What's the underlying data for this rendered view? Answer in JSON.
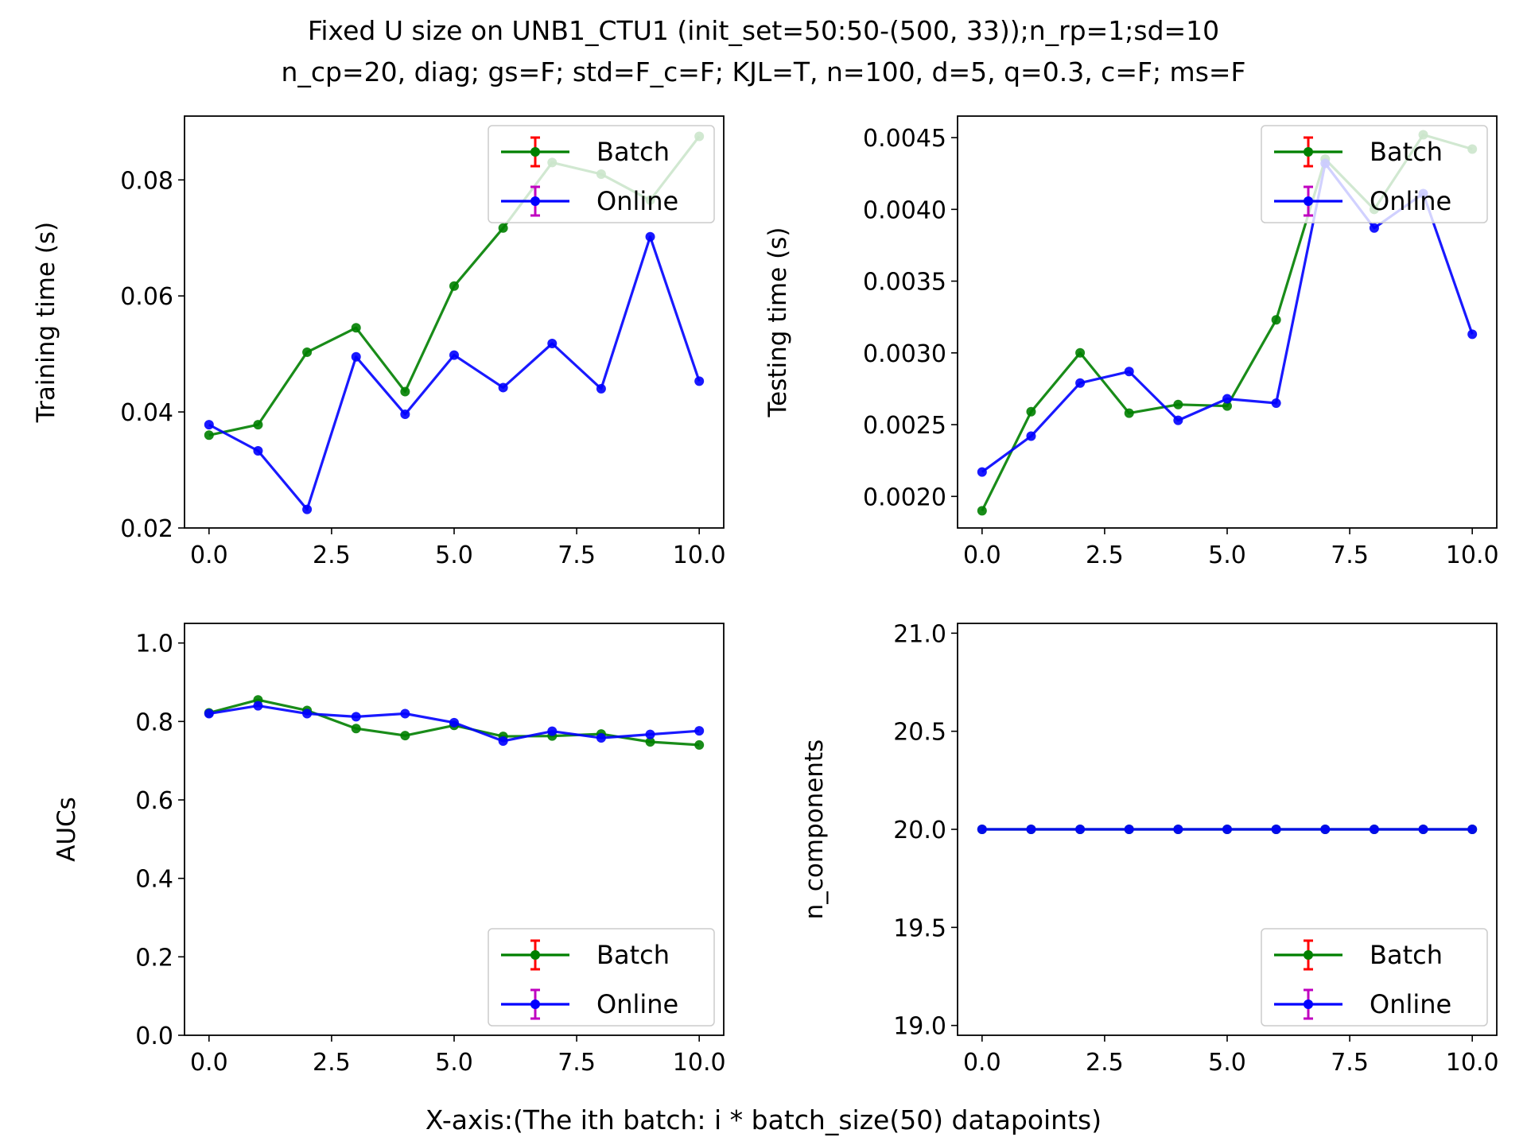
{
  "figure": {
    "title_line1": "Fixed U size on UNB1_CTU1 (init_set=50:50-(500, 33));n_rp=1;sd=10",
    "title_line2": "n_cp=20, diag; gs=F; std=F_c=F; KJL=T, n=100, d=5, q=0.3, c=F; ms=F",
    "xlabel": "X-axis:(The ith batch: i * batch_size(50) datapoints)"
  },
  "colors": {
    "batch": "#008000",
    "online": "#0000ff",
    "batch_err": "#ff0000",
    "online_err": "#c000c0"
  },
  "chart_data": [
    {
      "type": "line",
      "ylabel": "Training time (s)",
      "xlim": [
        -0.5,
        10.5
      ],
      "ylim": [
        0.02,
        0.091
      ],
      "xticks": [
        0,
        2.5,
        5,
        7.5,
        10
      ],
      "xtick_labels": [
        "0.0",
        "2.5",
        "5.0",
        "7.5",
        "10.0"
      ],
      "yticks": [
        0.02,
        0.04,
        0.06,
        0.08
      ],
      "ytick_labels": [
        "0.02",
        "0.04",
        "0.06",
        "0.08"
      ],
      "legend": "top-right",
      "x": [
        0,
        1,
        2,
        3,
        4,
        5,
        6,
        7,
        8,
        9,
        10
      ],
      "series": [
        {
          "name": "Batch",
          "values": [
            0.036,
            0.0378,
            0.0503,
            0.0545,
            0.0435,
            0.0617,
            0.0717,
            0.083,
            0.081,
            0.0765,
            0.0875
          ]
        },
        {
          "name": "Online",
          "values": [
            0.0378,
            0.0333,
            0.0232,
            0.0495,
            0.0396,
            0.0498,
            0.0442,
            0.0518,
            0.044,
            0.0702,
            0.0453
          ]
        }
      ]
    },
    {
      "type": "line",
      "ylabel": "Testing time (s)",
      "xlim": [
        -0.5,
        10.5
      ],
      "ylim": [
        0.00178,
        0.00465
      ],
      "xticks": [
        0,
        2.5,
        5,
        7.5,
        10
      ],
      "xtick_labels": [
        "0.0",
        "2.5",
        "5.0",
        "7.5",
        "10.0"
      ],
      "yticks": [
        0.002,
        0.0025,
        0.003,
        0.0035,
        0.004,
        0.0045
      ],
      "ytick_labels": [
        "0.0020",
        "0.0025",
        "0.0030",
        "0.0035",
        "0.0040",
        "0.0045"
      ],
      "legend": "top-right",
      "x": [
        0,
        1,
        2,
        3,
        4,
        5,
        6,
        7,
        8,
        9,
        10
      ],
      "series": [
        {
          "name": "Batch",
          "values": [
            0.0019,
            0.00259,
            0.003,
            0.00258,
            0.00264,
            0.00263,
            0.00323,
            0.00435,
            0.004,
            0.00452,
            0.00442
          ]
        },
        {
          "name": "Online",
          "values": [
            0.00217,
            0.00242,
            0.00279,
            0.00287,
            0.00253,
            0.00268,
            0.00265,
            0.00432,
            0.00387,
            0.00411,
            0.00313
          ]
        }
      ]
    },
    {
      "type": "line",
      "ylabel": "AUCs",
      "xlim": [
        -0.5,
        10.5
      ],
      "ylim": [
        0.0,
        1.05
      ],
      "xticks": [
        0,
        2.5,
        5,
        7.5,
        10
      ],
      "xtick_labels": [
        "0.0",
        "2.5",
        "5.0",
        "7.5",
        "10.0"
      ],
      "yticks": [
        0.0,
        0.2,
        0.4,
        0.6,
        0.8,
        1.0
      ],
      "ytick_labels": [
        "0.0",
        "0.2",
        "0.4",
        "0.6",
        "0.8",
        "1.0"
      ],
      "legend": "bottom-right",
      "x": [
        0,
        1,
        2,
        3,
        4,
        5,
        6,
        7,
        8,
        9,
        10
      ],
      "series": [
        {
          "name": "Batch",
          "values": [
            0.822,
            0.855,
            0.828,
            0.782,
            0.764,
            0.79,
            0.762,
            0.763,
            0.768,
            0.748,
            0.74
          ]
        },
        {
          "name": "Online",
          "values": [
            0.82,
            0.84,
            0.82,
            0.812,
            0.82,
            0.797,
            0.75,
            0.775,
            0.758,
            0.767,
            0.776
          ]
        }
      ]
    },
    {
      "type": "line",
      "ylabel": "n_components",
      "xlim": [
        -0.5,
        10.5
      ],
      "ylim": [
        18.95,
        21.05
      ],
      "xticks": [
        0,
        2.5,
        5,
        7.5,
        10
      ],
      "xtick_labels": [
        "0.0",
        "2.5",
        "5.0",
        "7.5",
        "10.0"
      ],
      "yticks": [
        19.0,
        19.5,
        20.0,
        20.5,
        21.0
      ],
      "ytick_labels": [
        "19.0",
        "19.5",
        "20.0",
        "20.5",
        "21.0"
      ],
      "legend": "bottom-right",
      "x": [
        0,
        1,
        2,
        3,
        4,
        5,
        6,
        7,
        8,
        9,
        10
      ],
      "series": [
        {
          "name": "Batch",
          "values": [
            20,
            20,
            20,
            20,
            20,
            20,
            20,
            20,
            20,
            20,
            20
          ]
        },
        {
          "name": "Online",
          "values": [
            20,
            20,
            20,
            20,
            20,
            20,
            20,
            20,
            20,
            20,
            20
          ]
        }
      ]
    }
  ]
}
